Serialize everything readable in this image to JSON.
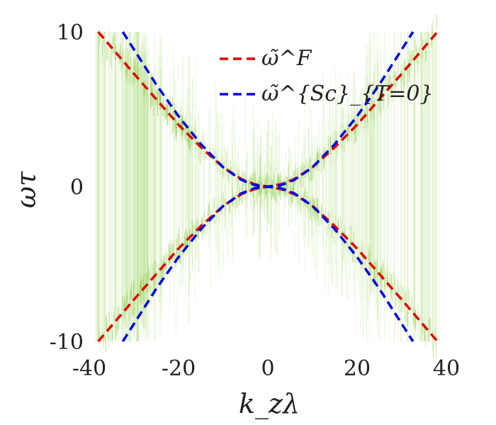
{
  "chart_data": {
    "type": "line",
    "title": "",
    "xlabel": "k_zλ",
    "ylabel": "ωτ",
    "xlim": [
      -40,
      40
    ],
    "ylim": [
      -10,
      10
    ],
    "x_ticks": [
      {
        "value": -40,
        "label": "-40"
      },
      {
        "value": -20,
        "label": "-20"
      },
      {
        "value": 0,
        "label": "0"
      },
      {
        "value": 20,
        "label": "20"
      },
      {
        "value": 40,
        "label": "40"
      }
    ],
    "y_ticks": [
      {
        "value": 10,
        "label": "10"
      },
      {
        "value": 0,
        "label": "0"
      },
      {
        "value": -10,
        "label": "-10"
      }
    ],
    "grid": false,
    "legend_position": "top-center",
    "series": [
      {
        "name": "ω̃^F",
        "color": "#e00000",
        "style": "dashed",
        "x": [
          -38,
          -30,
          -20,
          -15,
          -10,
          -6,
          -3,
          0,
          3,
          6,
          10,
          15,
          20,
          30,
          38
        ],
        "y_upper": [
          10.0,
          7.3,
          4.0,
          2.55,
          1.25,
          0.5,
          0.16,
          0.0,
          0.16,
          0.5,
          1.25,
          2.55,
          4.0,
          7.3,
          10.0
        ],
        "y_lower": [
          -10.0,
          -7.3,
          -4.0,
          -2.55,
          -1.25,
          -0.5,
          -0.16,
          0.0,
          -0.16,
          -0.5,
          -1.25,
          -2.55,
          -4.0,
          -7.3,
          -10.0
        ]
      },
      {
        "name": "ω̃^{Sc}_{T=0}",
        "color": "#0000dd",
        "style": "dashed",
        "x": [
          -32.5,
          -25,
          -20,
          -15,
          -10,
          -6,
          -3,
          0,
          3,
          6,
          10,
          15,
          20,
          25,
          32.5
        ],
        "y_upper": [
          10.0,
          6.6,
          4.55,
          2.75,
          1.25,
          0.45,
          0.1,
          0.0,
          0.1,
          0.45,
          1.25,
          2.75,
          4.55,
          6.6,
          10.0
        ],
        "y_lower": [
          -10.0,
          -6.6,
          -4.55,
          -2.75,
          -1.25,
          -0.45,
          -0.1,
          0.0,
          -0.1,
          -0.45,
          -1.25,
          -2.75,
          -4.55,
          -6.6,
          -10.0
        ]
      }
    ],
    "background_spectrum": {
      "color": "#6fc21a",
      "description_type": "scattered density of vertical strands concentrated around dispersion branches"
    }
  }
}
